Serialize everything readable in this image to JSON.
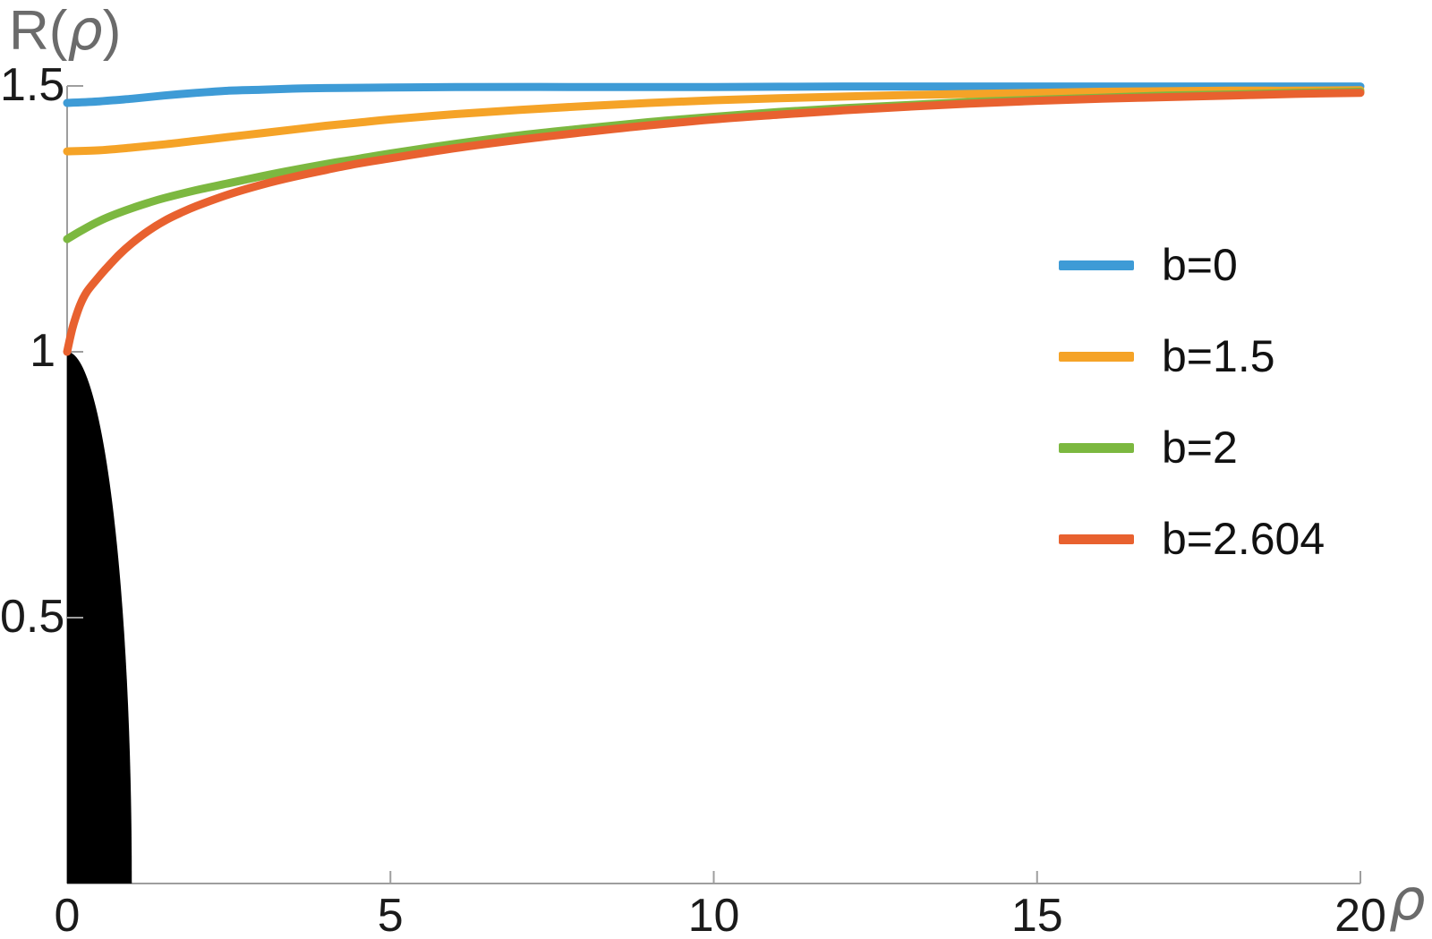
{
  "title": {
    "pre": "R(",
    "var": "ρ",
    "post": ")"
  },
  "x_axis_label": "ρ",
  "colors": {
    "background": "#ffffff",
    "axis": "#9e9e9e",
    "tick_text": "#1a1a1a",
    "title_text": "#6b6b6b",
    "blue": "#3e9bd6",
    "orange": "#f5a327",
    "green": "#7cb840",
    "red": "#e8612f",
    "black_region": "#000000"
  },
  "legend": {
    "position": "right-middle",
    "items": [
      {
        "label": "b=0",
        "color": "#3e9bd6"
      },
      {
        "label": "b=1.5",
        "color": "#f5a327"
      },
      {
        "label": "b=2",
        "color": "#7cb840"
      },
      {
        "label": "b=2.604",
        "color": "#e8612f"
      }
    ]
  },
  "chart_data": {
    "type": "line",
    "title": "R(ρ)",
    "xlabel": "ρ",
    "ylabel": "R(ρ)",
    "xlim": [
      0,
      20
    ],
    "ylim": [
      0,
      1.5
    ],
    "grid": false,
    "legend_position": "right-middle",
    "x_ticks": [
      {
        "value": 0,
        "label": "0"
      },
      {
        "value": 5,
        "label": "5"
      },
      {
        "value": 10,
        "label": "10"
      },
      {
        "value": 15,
        "label": "15"
      },
      {
        "value": 20,
        "label": "20"
      }
    ],
    "y_ticks": [
      {
        "value": 1.5,
        "label": "1.5"
      },
      {
        "value": 1,
        "label": "1"
      },
      {
        "value": 0.5,
        "label": "0.5"
      }
    ],
    "black_region": {
      "shape": "quarter-disk",
      "description": "filled black region at origin bounded by ρ²+R²=1",
      "center": [
        0,
        0
      ],
      "rx": 1,
      "ry": 1,
      "color": "#000000"
    },
    "series": [
      {
        "name": "b=0",
        "color": "#3e9bd6",
        "stroke_width": 9,
        "points": [
          [
            0,
            1.468
          ],
          [
            0.5,
            1.471
          ],
          [
            1,
            1.476
          ],
          [
            1.5,
            1.482
          ],
          [
            2,
            1.487
          ],
          [
            2.5,
            1.491
          ],
          [
            3,
            1.493
          ],
          [
            3.5,
            1.495
          ],
          [
            4,
            1.496
          ],
          [
            5,
            1.497
          ],
          [
            6,
            1.498
          ],
          [
            8,
            1.498
          ],
          [
            10,
            1.498
          ],
          [
            12,
            1.499
          ],
          [
            14,
            1.499
          ],
          [
            16,
            1.499
          ],
          [
            18,
            1.499
          ],
          [
            20,
            1.499
          ]
        ]
      },
      {
        "name": "b=1.5",
        "color": "#f5a327",
        "stroke_width": 9,
        "points": [
          [
            0,
            1.377
          ],
          [
            0.5,
            1.379
          ],
          [
            1,
            1.384
          ],
          [
            1.5,
            1.39
          ],
          [
            2,
            1.397
          ],
          [
            2.5,
            1.404
          ],
          [
            3,
            1.411
          ],
          [
            3.5,
            1.418
          ],
          [
            4,
            1.425
          ],
          [
            4.5,
            1.431
          ],
          [
            5,
            1.437
          ],
          [
            6,
            1.447
          ],
          [
            7,
            1.455
          ],
          [
            8,
            1.462
          ],
          [
            9,
            1.468
          ],
          [
            10,
            1.473
          ],
          [
            11,
            1.477
          ],
          [
            12,
            1.48
          ],
          [
            13,
            1.483
          ],
          [
            14,
            1.485
          ],
          [
            15,
            1.487
          ],
          [
            16,
            1.489
          ],
          [
            17,
            1.49
          ],
          [
            18,
            1.491
          ],
          [
            19,
            1.491
          ],
          [
            20,
            1.492
          ]
        ]
      },
      {
        "name": "b=2",
        "color": "#7cb840",
        "stroke_width": 9,
        "points": [
          [
            0,
            1.212
          ],
          [
            0.25,
            1.23
          ],
          [
            0.5,
            1.246
          ],
          [
            0.75,
            1.259
          ],
          [
            1,
            1.27
          ],
          [
            1.25,
            1.28
          ],
          [
            1.5,
            1.289
          ],
          [
            2,
            1.304
          ],
          [
            2.5,
            1.317
          ],
          [
            3,
            1.33
          ],
          [
            3.5,
            1.342
          ],
          [
            4,
            1.353
          ],
          [
            4.5,
            1.363
          ],
          [
            5,
            1.373
          ],
          [
            6,
            1.391
          ],
          [
            7,
            1.407
          ],
          [
            8,
            1.42
          ],
          [
            9,
            1.432
          ],
          [
            10,
            1.442
          ],
          [
            11,
            1.451
          ],
          [
            12,
            1.458
          ],
          [
            13,
            1.464
          ],
          [
            14,
            1.47
          ],
          [
            15,
            1.474
          ],
          [
            16,
            1.478
          ],
          [
            17,
            1.482
          ],
          [
            18,
            1.484
          ],
          [
            19,
            1.487
          ],
          [
            20,
            1.489
          ]
        ]
      },
      {
        "name": "b=2.604",
        "color": "#e8612f",
        "stroke_width": 9,
        "points": [
          [
            0,
            1.0
          ],
          [
            0.05,
            1.028
          ],
          [
            0.1,
            1.052
          ],
          [
            0.2,
            1.088
          ],
          [
            0.3,
            1.112
          ],
          [
            0.45,
            1.135
          ],
          [
            0.6,
            1.156
          ],
          [
            0.8,
            1.182
          ],
          [
            1,
            1.204
          ],
          [
            1.25,
            1.227
          ],
          [
            1.5,
            1.246
          ],
          [
            1.75,
            1.261
          ],
          [
            2,
            1.274
          ],
          [
            2.5,
            1.296
          ],
          [
            3,
            1.314
          ],
          [
            3.5,
            1.329
          ],
          [
            4,
            1.342
          ],
          [
            4.5,
            1.354
          ],
          [
            5,
            1.364
          ],
          [
            6,
            1.383
          ],
          [
            7,
            1.399
          ],
          [
            8,
            1.413
          ],
          [
            9,
            1.426
          ],
          [
            10,
            1.437
          ],
          [
            11,
            1.446
          ],
          [
            12,
            1.454
          ],
          [
            13,
            1.461
          ],
          [
            14,
            1.467
          ],
          [
            15,
            1.472
          ],
          [
            16,
            1.476
          ],
          [
            17,
            1.479
          ],
          [
            18,
            1.482
          ],
          [
            19,
            1.485
          ],
          [
            20,
            1.487
          ]
        ]
      }
    ]
  }
}
